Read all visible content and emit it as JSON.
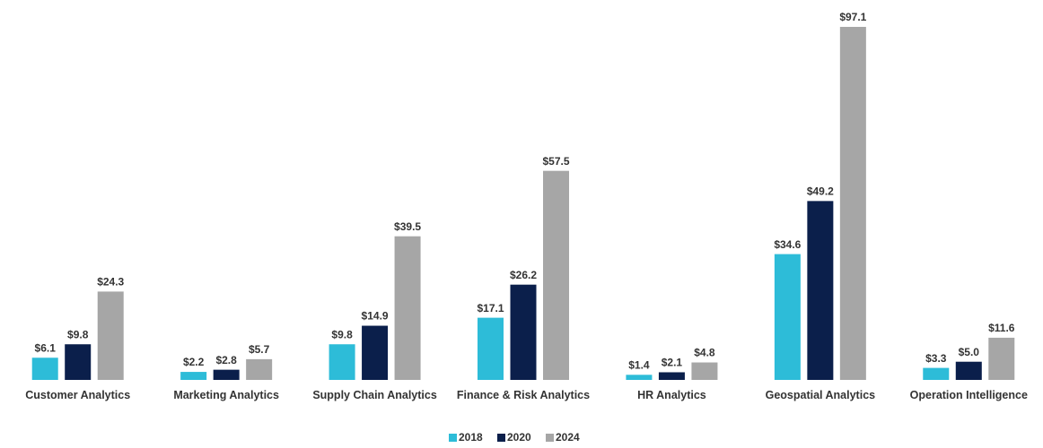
{
  "chart_data": {
    "type": "bar",
    "categories": [
      "Customer Analytics",
      "Marketing Analytics",
      "Supply Chain Analytics",
      "Finance & Risk Analytics",
      "HR Analytics",
      "Geospatial Analytics",
      "Operation Intelligence"
    ],
    "series": [
      {
        "name": "2018",
        "color": "#2dbcd8",
        "values": [
          6.1,
          2.2,
          9.8,
          17.1,
          1.4,
          34.6,
          3.3
        ],
        "value_labels": [
          "$6.1",
          "$2.2",
          "$9.8",
          "$17.1",
          "$1.4",
          "$34.6",
          "$3.3"
        ]
      },
      {
        "name": "2020",
        "color": "#0b1f4b",
        "values": [
          9.8,
          2.8,
          14.9,
          26.2,
          2.1,
          49.2,
          5
        ],
        "value_labels": [
          "$9.8",
          "$2.8",
          "$14.9",
          "$26.2",
          "$2.1",
          "$49.2",
          "$5.0"
        ]
      },
      {
        "name": "2024",
        "color": "#a6a6a6",
        "values": [
          24.3,
          5.7,
          39.5,
          57.5,
          4.8,
          97.1,
          11.6
        ],
        "value_labels": [
          "$24.3",
          "$5.7",
          "$39.5",
          "$57.5",
          "$4.8",
          "$97.1",
          "$11.6"
        ]
      }
    ],
    "legend": "bottom"
  }
}
